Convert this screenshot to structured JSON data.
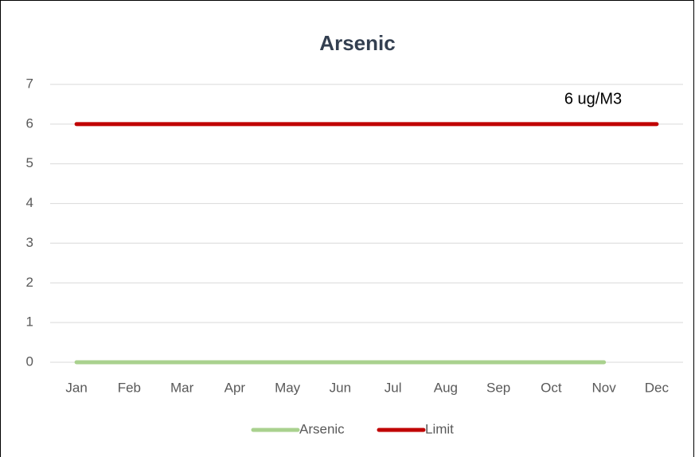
{
  "chart_data": {
    "type": "line",
    "title": "Arsenic",
    "categories": [
      "Jan",
      "Feb",
      "Mar",
      "Apr",
      "May",
      "Jun",
      "Jul",
      "Aug",
      "Sep",
      "Oct",
      "Nov",
      "Dec"
    ],
    "series": [
      {
        "name": "Arsenic",
        "color": "#a9d18e",
        "values": [
          0,
          0,
          0,
          0,
          0,
          0,
          0,
          0,
          0,
          0,
          0,
          null
        ]
      },
      {
        "name": "Limit",
        "color": "#c00000",
        "values": [
          6,
          6,
          6,
          6,
          6,
          6,
          6,
          6,
          6,
          6,
          6,
          6
        ]
      }
    ],
    "annotations": [
      "6 ug/M3"
    ],
    "ylim": [
      0,
      7
    ],
    "yticks": [
      0,
      1,
      2,
      3,
      4,
      5,
      6,
      7
    ],
    "grid": true,
    "legend": "bottom"
  }
}
